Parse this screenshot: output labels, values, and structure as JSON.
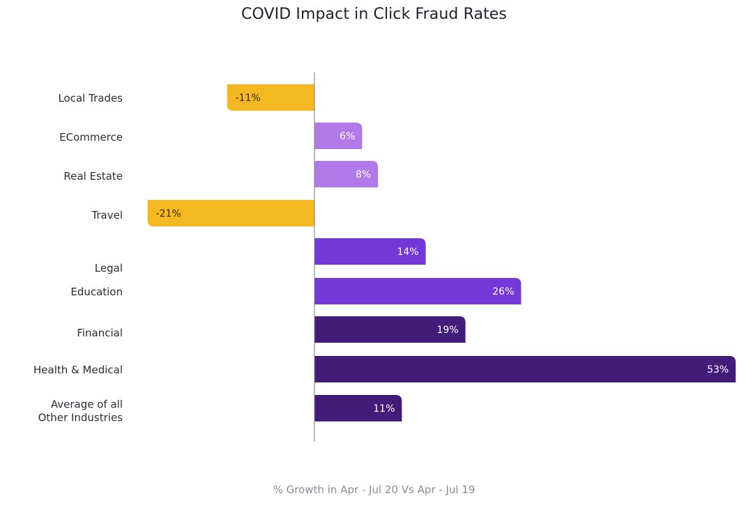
{
  "chart_data": {
    "type": "bar",
    "orientation": "horizontal",
    "title": "COVID Impact in Click Fraud Rates",
    "xlabel": "% Growth in Apr - Jul 20 Vs Apr - Jul 19",
    "ylabel": "",
    "xlim": [
      -26,
      60
    ],
    "grid": false,
    "legend": "none",
    "unit_suffix": "%",
    "categories": [
      [
        "Local Trades"
      ],
      [
        "ECommerce"
      ],
      [
        "Real Estate"
      ],
      [
        "Travel"
      ],
      [
        "Legal"
      ],
      [
        "Education"
      ],
      [
        "Financial"
      ],
      [
        "Health & Medical"
      ],
      [
        "Average of all",
        "Other Industries"
      ]
    ],
    "values": [
      -11,
      6,
      8,
      -21,
      14,
      26,
      19,
      53,
      11
    ],
    "value_labels": [
      "-11%",
      "6%",
      "8%",
      "-21%",
      "14%",
      "26%",
      "19%",
      "53%",
      "11%"
    ],
    "bar_colors": [
      "#f4b921",
      "#b27ae8",
      "#b27ae8",
      "#f4b921",
      "#7338d6",
      "#7338d6",
      "#431b78",
      "#431b78",
      "#431b78"
    ]
  },
  "colors": {
    "title": "#1f1f2e",
    "axis_line": "#8c8c8c",
    "label_on_dark": "#ffffff",
    "label_on_negative": "#3a2a10"
  }
}
